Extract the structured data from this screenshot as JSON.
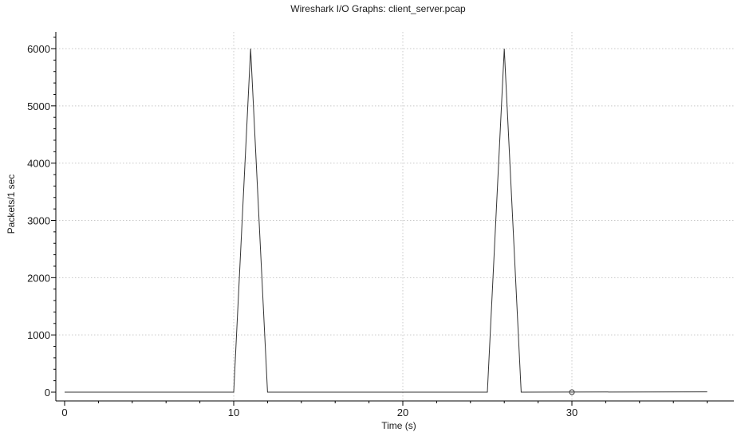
{
  "chart_data": {
    "type": "line",
    "title": "Wireshark I/O Graphs: client_server.pcap",
    "xlabel": "Time (s)",
    "ylabel": "Packets/1 sec",
    "xlim": [
      0,
      39
    ],
    "ylim": [
      -100,
      6300
    ],
    "x_ticks": [
      0,
      10,
      20,
      30
    ],
    "x_tick_labels": [
      "0",
      "10",
      "20",
      "30"
    ],
    "y_ticks": [
      0,
      1000,
      2000,
      3000,
      4000,
      5000,
      6000
    ],
    "y_tick_labels": [
      "0",
      "1000",
      "2000",
      "3000",
      "4000",
      "5000",
      "6000"
    ],
    "grid": true,
    "series": [
      {
        "color": "#333333",
        "x": [
          0,
          10,
          11,
          12,
          25,
          26,
          27,
          38
        ],
        "y": [
          0,
          0,
          6000,
          0,
          0,
          6000,
          0,
          5
        ]
      }
    ],
    "markers": [
      {
        "x": 30,
        "y": 0
      }
    ]
  }
}
